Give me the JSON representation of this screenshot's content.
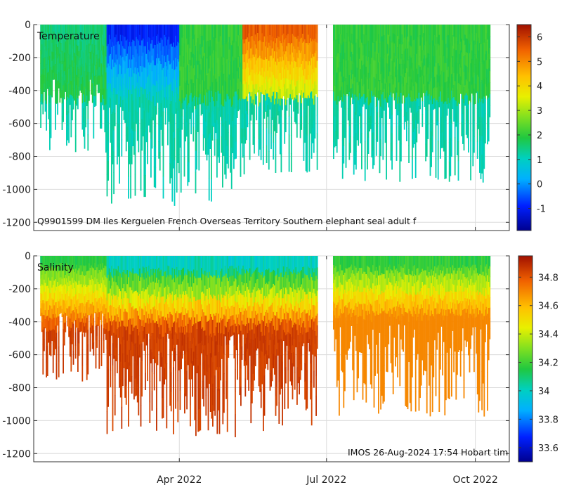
{
  "chart_data": [
    {
      "type": "heatmap",
      "variable": "Temperature",
      "title_label": "Temperature",
      "annotation": "Q9901599 DM Iles Kerguelen French Overseas Territory Southern elephant seal adult f",
      "ylabel": "",
      "yticks": [
        "0",
        "-200",
        "-400",
        "-600",
        "-800",
        "-1000",
        "-1200"
      ],
      "ytick_values": [
        0,
        -200,
        -400,
        -600,
        -800,
        -1000,
        -1200
      ],
      "ylim": [
        -1250,
        0
      ],
      "colorbar": {
        "range": [
          -1.9,
          6.5
        ],
        "ticks": [
          "6",
          "5",
          "4",
          "3",
          "2",
          "1",
          "0",
          "-1"
        ],
        "tick_values": [
          6,
          5,
          4,
          3,
          2,
          1,
          0,
          -1
        ],
        "colormap": "jet-like"
      },
      "profile_bands": [
        {
          "start": "2022-01-05",
          "end": "2022-02-15",
          "typical_max_depth": 600,
          "surface_value": 1.5
        },
        {
          "start": "2022-02-15",
          "end": "2022-04-01",
          "typical_max_depth": 850,
          "surface_value": -1.2
        },
        {
          "start": "2022-04-01",
          "end": "2022-05-10",
          "typical_max_depth": 850,
          "surface_value": 2.0
        },
        {
          "start": "2022-05-10",
          "end": "2022-06-25",
          "typical_max_depth": 700,
          "surface_value": 5.8
        },
        {
          "start": "2022-07-05",
          "end": "2022-10-10",
          "typical_max_depth": 750,
          "surface_value": 2.0
        }
      ]
    },
    {
      "type": "heatmap",
      "variable": "Salinity",
      "title_label": "Salinity",
      "annotation": "IMOS 26-Aug-2024 17:54 Hobart tim",
      "ylabel": "",
      "yticks": [
        "0",
        "-200",
        "-400",
        "-600",
        "-800",
        "-1000",
        "-1200"
      ],
      "ytick_values": [
        0,
        -200,
        -400,
        -600,
        -800,
        -1000,
        -1200
      ],
      "ylim": [
        -1250,
        0
      ],
      "xticks": [
        "Apr 2022",
        "Jul 2022",
        "Oct 2022"
      ],
      "colorbar": {
        "range": [
          33.5,
          34.95
        ],
        "ticks": [
          "34.8",
          "34.6",
          "34.4",
          "34.2",
          "34",
          "33.8",
          "33.6"
        ],
        "tick_values": [
          34.8,
          34.6,
          34.4,
          34.2,
          34.0,
          33.8,
          33.6
        ],
        "colormap": "jet-like"
      },
      "profile_bands": [
        {
          "start": "2022-01-05",
          "end": "2022-02-15",
          "typical_max_depth": 600,
          "surface_value": 34.1
        },
        {
          "start": "2022-02-15",
          "end": "2022-06-25",
          "typical_max_depth": 850,
          "surface_value": 33.9
        },
        {
          "start": "2022-07-05",
          "end": "2022-10-10",
          "typical_max_depth": 750,
          "surface_value": 34.1
        }
      ]
    }
  ]
}
